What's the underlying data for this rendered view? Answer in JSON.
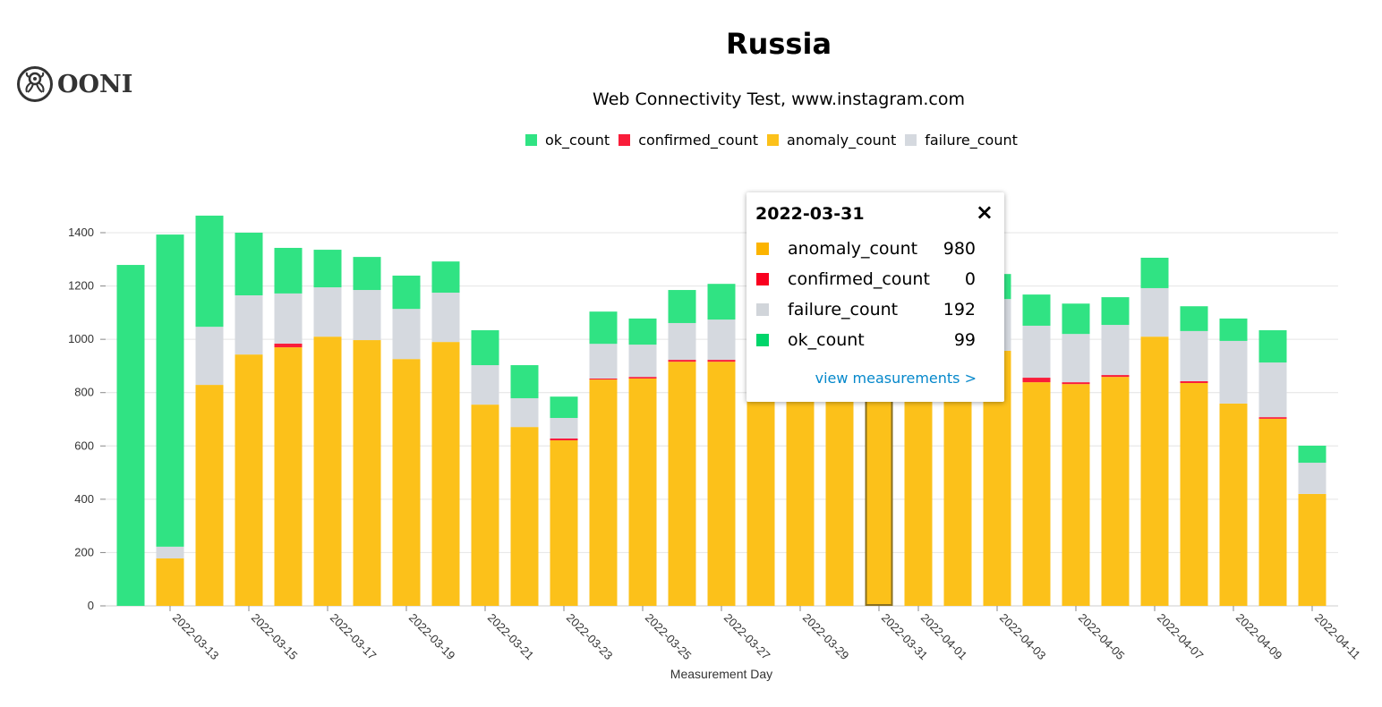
{
  "logo": {
    "text": "OONI"
  },
  "chart_data": {
    "type": "bar",
    "stacked": true,
    "title": "Russia",
    "subtitle": "Web Connectivity Test, www.instagram.com",
    "xlabel": "Measurement Day",
    "ylabel": "",
    "ylim": [
      0,
      1500
    ],
    "yticks": [
      0,
      200,
      400,
      600,
      800,
      1000,
      1200,
      1400
    ],
    "grid": true,
    "legend_position": "top",
    "categories": [
      "2022-03-12",
      "2022-03-13",
      "2022-03-14",
      "2022-03-15",
      "2022-03-16",
      "2022-03-17",
      "2022-03-18",
      "2022-03-19",
      "2022-03-20",
      "2022-03-21",
      "2022-03-22",
      "2022-03-23",
      "2022-03-24",
      "2022-03-25",
      "2022-03-26",
      "2022-03-27",
      "2022-03-28",
      "2022-03-29",
      "2022-03-30",
      "2022-03-31",
      "2022-04-01",
      "2022-04-02",
      "2022-04-03",
      "2022-04-04",
      "2022-04-05",
      "2022-04-06",
      "2022-04-07",
      "2022-04-08",
      "2022-04-09",
      "2022-04-10",
      "2022-04-11"
    ],
    "tick_labels": [
      "2022-03-13",
      "2022-03-15",
      "2022-03-17",
      "2022-03-19",
      "2022-03-21",
      "2022-03-23",
      "2022-03-25",
      "2022-03-27",
      "2022-03-29",
      "2022-03-31",
      "2022-04-01",
      "2022-04-03",
      "2022-04-05",
      "2022-04-07",
      "2022-04-09",
      "2022-04-11"
    ],
    "series": [
      {
        "name": "anomaly_count",
        "color": "#fcc11a",
        "values": [
          0,
          178,
          829,
          943,
          970,
          1010,
          997,
          926,
          990,
          755,
          671,
          621,
          849,
          853,
          916,
          916,
          960,
          970,
          975,
          980,
          965,
          960,
          957,
          839,
          832,
          859,
          1010,
          836,
          759,
          702,
          420
        ]
      },
      {
        "name": "confirmed_count",
        "color": "#f91d3a",
        "values": [
          0,
          0,
          0,
          0,
          14,
          0,
          0,
          0,
          0,
          0,
          0,
          7,
          4,
          6,
          7,
          7,
          5,
          0,
          0,
          0,
          5,
          5,
          0,
          17,
          7,
          7,
          0,
          7,
          0,
          6,
          0
        ]
      },
      {
        "name": "failure_count",
        "color": "#d5d9df",
        "values": [
          0,
          44,
          218,
          222,
          188,
          185,
          188,
          188,
          185,
          148,
          108,
          77,
          130,
          121,
          138,
          151,
          190,
          190,
          185,
          192,
          190,
          195,
          194,
          195,
          181,
          188,
          182,
          188,
          235,
          205,
          117
        ]
      },
      {
        "name": "ok_count",
        "color": "#30e383",
        "values": [
          1279,
          1171,
          417,
          235,
          171,
          141,
          124,
          125,
          117,
          131,
          124,
          80,
          121,
          98,
          124,
          134,
          110,
          105,
          100,
          99,
          100,
          95,
          94,
          117,
          114,
          104,
          114,
          93,
          84,
          121,
          64
        ]
      }
    ],
    "legend_order": [
      "ok_count",
      "confirmed_count",
      "anomaly_count",
      "failure_count"
    ],
    "highlighted": "2022-03-31"
  },
  "tooltip": {
    "date": "2022-03-31",
    "close": "×",
    "rows": [
      {
        "label": "anomaly_count",
        "value": "980",
        "color": "#fcb400"
      },
      {
        "label": "confirmed_count",
        "value": "0",
        "color": "#f9001f"
      },
      {
        "label": "failure_count",
        "value": "192",
        "color": "#d1d5da"
      },
      {
        "label": "ok_count",
        "value": "99",
        "color": "#00d56a"
      }
    ],
    "link": "view measurements >"
  }
}
